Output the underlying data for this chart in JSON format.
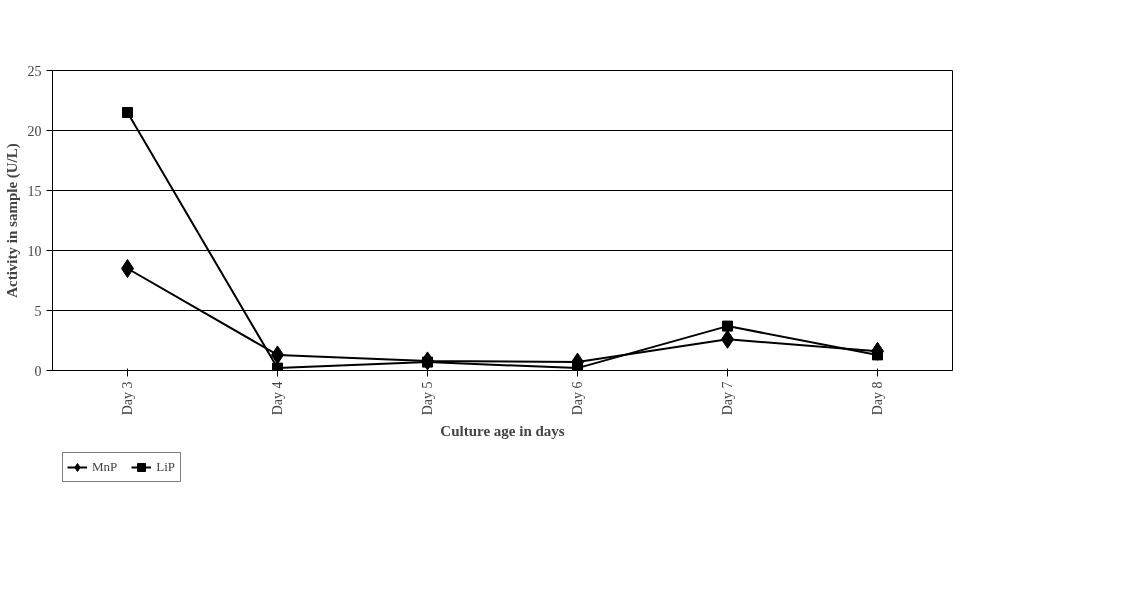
{
  "chart_data": {
    "type": "line",
    "xlabel": "Culture age in days",
    "ylabel": "Activity in sample (U/L)",
    "categories": [
      "Day 3",
      "Day 4",
      "Day 5",
      "Day 6",
      "Day 7",
      "Day 8"
    ],
    "series": [
      {
        "name": "MnP",
        "color": "#000000",
        "marker": "diamond",
        "values": [
          8.5,
          1.3,
          0.8,
          0.7,
          2.6,
          1.6
        ]
      },
      {
        "name": "LiP",
        "color": "#000000",
        "marker": "square",
        "values": [
          21.5,
          0.2,
          0.7,
          0.2,
          3.7,
          1.3
        ]
      }
    ],
    "ylim": [
      0,
      25
    ],
    "yticks": [
      0,
      5,
      10,
      15,
      20,
      25
    ],
    "grid": "y",
    "legend": "bottom left",
    "line_style": "solid"
  }
}
